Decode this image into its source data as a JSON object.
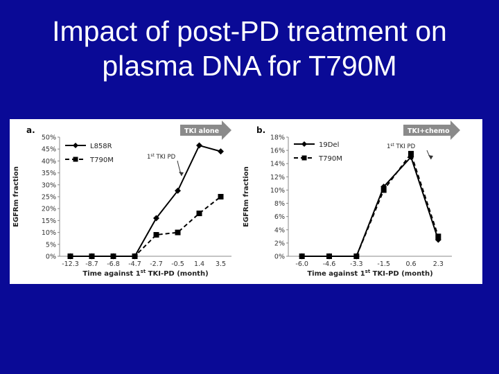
{
  "slide": {
    "title_line1": "Impact of post-PD treatment on",
    "title_line2": "plasma DNA for T790M"
  },
  "chart_data": [
    {
      "type": "line",
      "panel_label": "a.",
      "treatment_label": "TKI alone",
      "annotation": "1st TKI PD",
      "xlabel": "Time against 1st TKI-PD (month)",
      "ylabel": "EGFRm fraction",
      "categories": [
        "-12.3",
        "-8.7",
        "-6.8",
        "-4.7",
        "-2.7",
        "-0.5",
        "1.4",
        "3.5"
      ],
      "yticks": [
        "0%",
        "5%",
        "10%",
        "15%",
        "20%",
        "25%",
        "30%",
        "35%",
        "40%",
        "45%",
        "50%"
      ],
      "ylim": [
        0,
        50
      ],
      "series": [
        {
          "name": "L858R",
          "marker": "diamond",
          "dash": false,
          "values": [
            0,
            0,
            0,
            0,
            16,
            27.5,
            46.5,
            44
          ]
        },
        {
          "name": "T790M",
          "marker": "square",
          "dash": true,
          "values": [
            0,
            0,
            0,
            0,
            9,
            10,
            18,
            25
          ]
        }
      ]
    },
    {
      "type": "line",
      "panel_label": "b.",
      "treatment_label": "TKI+chemo",
      "annotation": "1st TKI PD",
      "xlabel": "Time against 1st TKI-PD (month)",
      "ylabel": "EGFRm fraction",
      "categories": [
        "-6.0",
        "-4.6",
        "-3.3",
        "-1.5",
        "0.6",
        "2.3"
      ],
      "yticks": [
        "0%",
        "2%",
        "4%",
        "6%",
        "8%",
        "10%",
        "12%",
        "14%",
        "16%",
        "18%"
      ],
      "ylim": [
        0,
        18
      ],
      "series": [
        {
          "name": "19Del",
          "marker": "diamond",
          "dash": false,
          "values": [
            0,
            0,
            0,
            10.5,
            15,
            2.5
          ]
        },
        {
          "name": "T790M",
          "marker": "square",
          "dash": true,
          "values": [
            0,
            0,
            0,
            10,
            15.5,
            3
          ]
        }
      ]
    }
  ]
}
